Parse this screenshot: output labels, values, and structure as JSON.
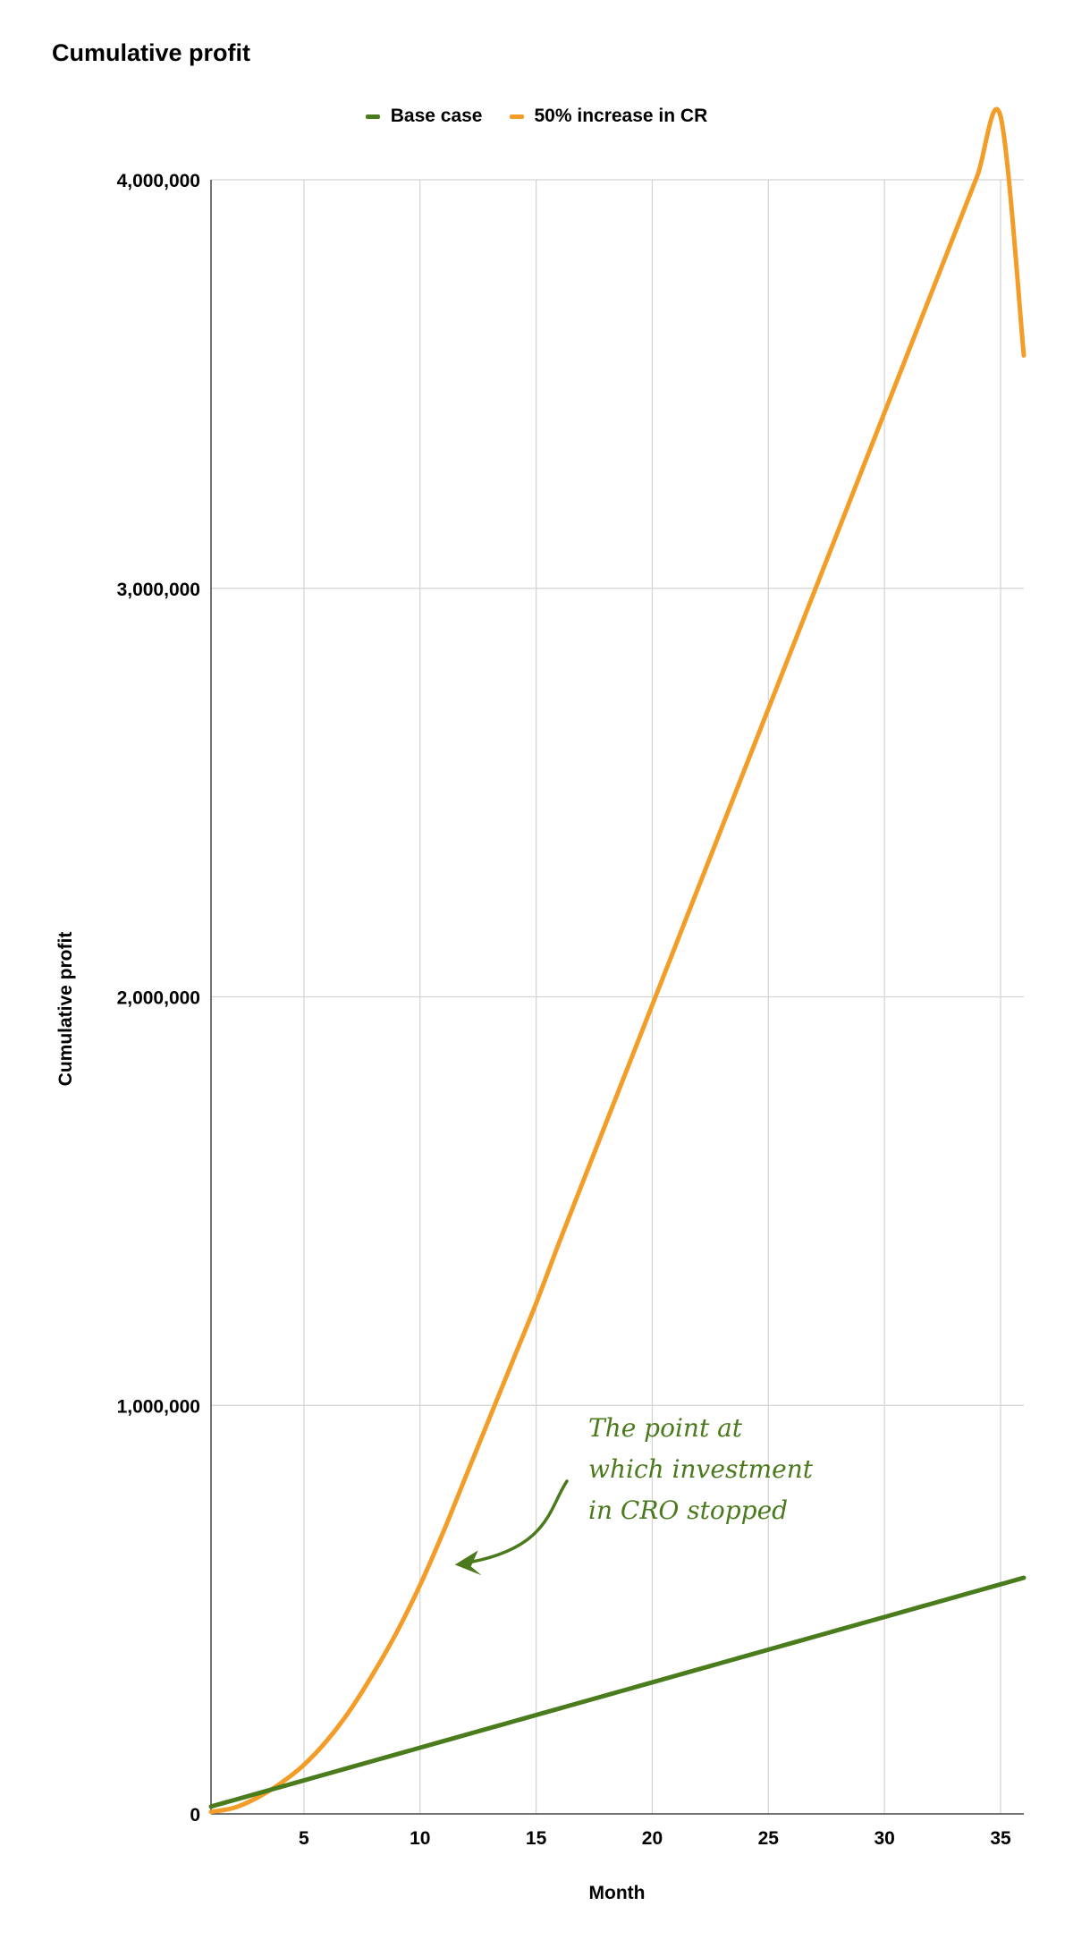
{
  "chart_data": {
    "type": "line",
    "title": "Cumulative profit",
    "xlabel": "Month",
    "ylabel": "Cumulative profit",
    "xlim": [
      1,
      36
    ],
    "ylim": [
      0,
      4000000
    ],
    "x_ticks": [
      5,
      10,
      15,
      20,
      25,
      30,
      35
    ],
    "y_ticks": [
      0,
      1000000,
      2000000,
      3000000,
      4000000
    ],
    "y_tick_labels": [
      "0",
      "1,000,000",
      "2,000,000",
      "3,000,000",
      "4,000,000"
    ],
    "grid": true,
    "legend_position": "top",
    "x": [
      1,
      2,
      3,
      4,
      5,
      6,
      7,
      8,
      9,
      10,
      11,
      12,
      13,
      14,
      15,
      16,
      17,
      18,
      19,
      20,
      21,
      22,
      23,
      24,
      25,
      26,
      27,
      28,
      29,
      30,
      31,
      32,
      33,
      34,
      35,
      36
    ],
    "series": [
      {
        "name": "Base case",
        "color": "#4a7c1e",
        "values": [
          18000,
          34000,
          50000,
          66000,
          82000,
          98000,
          114000,
          130000,
          146000,
          162000,
          178000,
          194000,
          210000,
          226000,
          242000,
          258000,
          274000,
          290000,
          306000,
          322000,
          338000,
          354000,
          370000,
          386000,
          402000,
          418000,
          434000,
          450000,
          466000,
          482000,
          498000,
          514000,
          530000,
          546000,
          562000,
          578000
        ]
      },
      {
        "name": "50% increase in CR",
        "color": "#f39c27",
        "values": [
          5000,
          15000,
          40000,
          75000,
          120000,
          180000,
          255000,
          345000,
          445000,
          560000,
          690000,
          830000,
          970000,
          1110000,
          1250000,
          1400000,
          1545000,
          1690000,
          1835000,
          1980000,
          2125000,
          2270000,
          2415000,
          2560000,
          2705000,
          2850000,
          2995000,
          3140000,
          3285000,
          3430000,
          3575000,
          3720000,
          3865000,
          4010000,
          4155000,
          3570000
        ]
      }
    ],
    "annotation": {
      "lines": [
        "The point at",
        "which investment",
        "in CRO stopped"
      ],
      "x": 11.5,
      "y": 610000
    }
  }
}
